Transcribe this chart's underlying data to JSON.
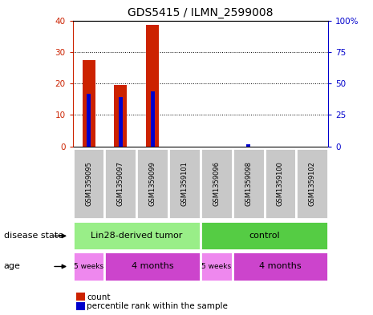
{
  "title": "GDS5415 / ILMN_2599008",
  "samples": [
    "GSM1359095",
    "GSM1359097",
    "GSM1359099",
    "GSM1359101",
    "GSM1359096",
    "GSM1359098",
    "GSM1359100",
    "GSM1359102"
  ],
  "counts": [
    27.5,
    19.5,
    38.5,
    0.0,
    0.0,
    0.0,
    0.0,
    0.0
  ],
  "percentile_ranks": [
    42,
    39,
    44,
    0.0,
    0.0,
    2,
    0.0,
    0.0
  ],
  "ylim_left": [
    0,
    40
  ],
  "ylim_right": [
    0,
    100
  ],
  "yticks_left": [
    0,
    10,
    20,
    30,
    40
  ],
  "yticks_right": [
    0,
    25,
    50,
    75,
    100
  ],
  "bar_color": "#cc2200",
  "percentile_color": "#0000cc",
  "disease_state_groups": [
    {
      "label": "Lin28-derived tumor",
      "start": 0,
      "end": 4,
      "color": "#99ee88"
    },
    {
      "label": "control",
      "start": 4,
      "end": 8,
      "color": "#55cc44"
    }
  ],
  "age_groups": [
    {
      "label": "5 weeks",
      "start": 0,
      "end": 1,
      "color": "#ee88ee"
    },
    {
      "label": "4 months",
      "start": 1,
      "end": 4,
      "color": "#cc44cc"
    },
    {
      "label": "5 weeks",
      "start": 4,
      "end": 5,
      "color": "#ee88ee"
    },
    {
      "label": "4 months",
      "start": 5,
      "end": 8,
      "color": "#cc44cc"
    }
  ],
  "disease_label": "disease state",
  "age_label": "age",
  "legend_count_label": "count",
  "legend_percentile_label": "percentile rank within the sample",
  "sample_box_color": "#c8c8c8",
  "left_axis_color": "#cc2200",
  "right_axis_color": "#0000cc",
  "bar_width": 0.4,
  "pct_bar_width": 0.12
}
